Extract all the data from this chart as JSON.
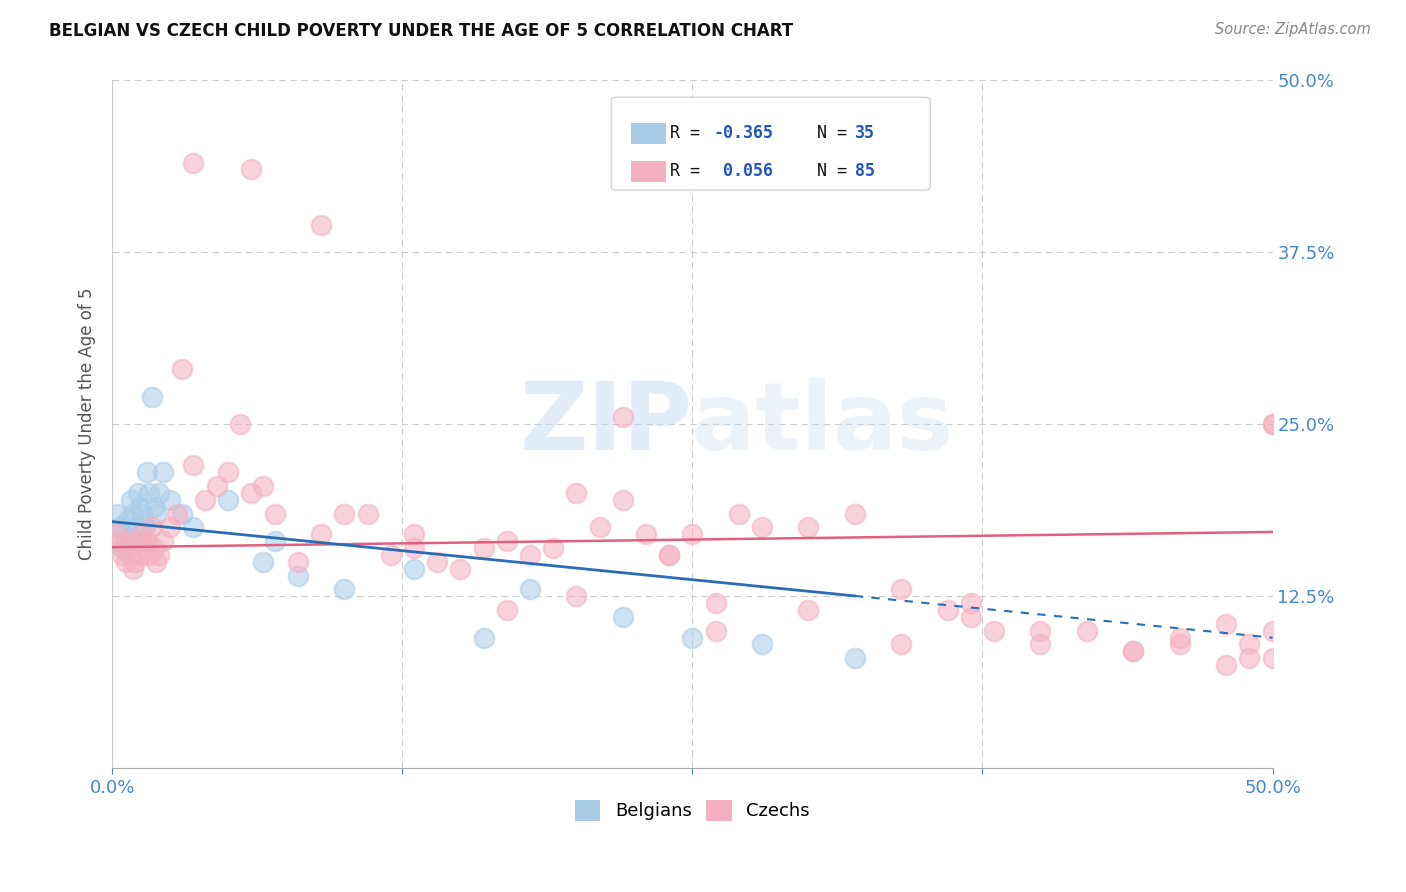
{
  "title": "BELGIAN VS CZECH CHILD POVERTY UNDER THE AGE OF 5 CORRELATION CHART",
  "source": "Source: ZipAtlas.com",
  "ylabel": "Child Poverty Under the Age of 5",
  "xlim": [
    0.0,
    0.5
  ],
  "ylim": [
    0.0,
    0.5
  ],
  "belgian_color": "#a8cce8",
  "czech_color": "#f4afc0",
  "belgian_line_color": "#2b6db5",
  "czech_line_color": "#e06080",
  "belgian_R": -0.365,
  "belgian_N": 35,
  "czech_R": 0.056,
  "czech_N": 85,
  "background_color": "#ffffff",
  "belgians_x": [
    0.002,
    0.003,
    0.004,
    0.005,
    0.006,
    0.007,
    0.008,
    0.009,
    0.01,
    0.011,
    0.012,
    0.013,
    0.014,
    0.015,
    0.016,
    0.017,
    0.018,
    0.019,
    0.02,
    0.022,
    0.025,
    0.03,
    0.035,
    0.05,
    0.065,
    0.07,
    0.08,
    0.1,
    0.13,
    0.16,
    0.18,
    0.22,
    0.25,
    0.28,
    0.32
  ],
  "belgians_y": [
    0.185,
    0.175,
    0.16,
    0.17,
    0.165,
    0.18,
    0.195,
    0.185,
    0.175,
    0.2,
    0.19,
    0.185,
    0.175,
    0.215,
    0.2,
    0.27,
    0.19,
    0.185,
    0.2,
    0.215,
    0.195,
    0.185,
    0.175,
    0.195,
    0.15,
    0.165,
    0.14,
    0.13,
    0.145,
    0.095,
    0.13,
    0.11,
    0.095,
    0.09,
    0.08
  ],
  "czechs_x": [
    0.002,
    0.003,
    0.004,
    0.005,
    0.006,
    0.007,
    0.008,
    0.009,
    0.01,
    0.011,
    0.012,
    0.013,
    0.014,
    0.015,
    0.016,
    0.017,
    0.018,
    0.019,
    0.02,
    0.022,
    0.025,
    0.028,
    0.03,
    0.035,
    0.04,
    0.045,
    0.05,
    0.055,
    0.06,
    0.065,
    0.07,
    0.08,
    0.09,
    0.1,
    0.11,
    0.12,
    0.13,
    0.14,
    0.15,
    0.16,
    0.17,
    0.18,
    0.19,
    0.2,
    0.21,
    0.22,
    0.23,
    0.24,
    0.25,
    0.26,
    0.27,
    0.28,
    0.3,
    0.32,
    0.34,
    0.36,
    0.37,
    0.38,
    0.4,
    0.42,
    0.44,
    0.46,
    0.48,
    0.49,
    0.5,
    0.035,
    0.06,
    0.09,
    0.13,
    0.17,
    0.2,
    0.22,
    0.24,
    0.26,
    0.3,
    0.34,
    0.37,
    0.4,
    0.44,
    0.46,
    0.48,
    0.49,
    0.5,
    0.5,
    0.5
  ],
  "czechs_y": [
    0.17,
    0.165,
    0.155,
    0.16,
    0.15,
    0.165,
    0.155,
    0.145,
    0.15,
    0.165,
    0.155,
    0.17,
    0.16,
    0.165,
    0.155,
    0.175,
    0.16,
    0.15,
    0.155,
    0.165,
    0.175,
    0.185,
    0.29,
    0.22,
    0.195,
    0.205,
    0.215,
    0.25,
    0.2,
    0.205,
    0.185,
    0.15,
    0.17,
    0.185,
    0.185,
    0.155,
    0.16,
    0.15,
    0.145,
    0.16,
    0.165,
    0.155,
    0.16,
    0.2,
    0.175,
    0.195,
    0.17,
    0.155,
    0.17,
    0.12,
    0.185,
    0.175,
    0.175,
    0.185,
    0.13,
    0.115,
    0.12,
    0.1,
    0.09,
    0.1,
    0.085,
    0.09,
    0.105,
    0.08,
    0.25,
    0.44,
    0.435,
    0.395,
    0.17,
    0.115,
    0.125,
    0.255,
    0.155,
    0.1,
    0.115,
    0.09,
    0.11,
    0.1,
    0.085,
    0.095,
    0.075,
    0.09,
    0.25,
    0.1,
    0.08
  ]
}
